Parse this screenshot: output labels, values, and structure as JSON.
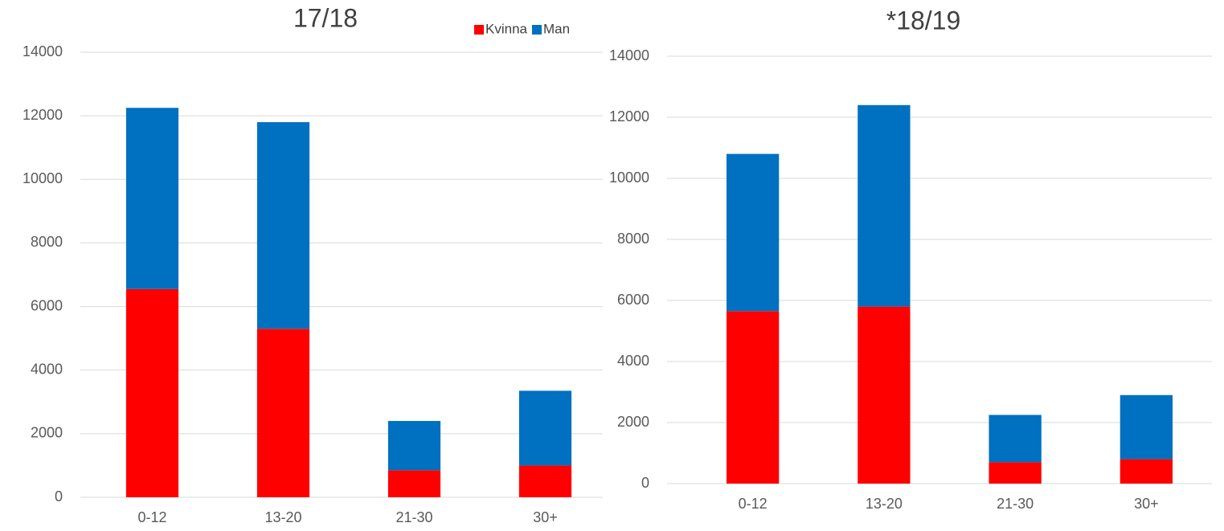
{
  "chart_data": [
    {
      "type": "bar",
      "stacked": true,
      "title": "17/18",
      "categories": [
        "0-12",
        "13-20",
        "21-30",
        "30+"
      ],
      "series": [
        {
          "name": "Kvinna",
          "color": "#ff0000",
          "values": [
            6550,
            5300,
            850,
            1000
          ]
        },
        {
          "name": "Man",
          "color": "#0070c0",
          "values": [
            5700,
            6500,
            1550,
            2350
          ]
        }
      ],
      "ylim": [
        0,
        14000
      ],
      "yticks": [
        0,
        2000,
        4000,
        6000,
        8000,
        10000,
        12000,
        14000
      ],
      "grid": true,
      "legend": "top right"
    },
    {
      "type": "bar",
      "stacked": true,
      "title": "*18/19",
      "categories": [
        "0-12",
        "13-20",
        "21-30",
        "30+"
      ],
      "series": [
        {
          "name": "Kvinna",
          "color": "#ff0000",
          "values": [
            5650,
            5800,
            700,
            800
          ]
        },
        {
          "name": "Man",
          "color": "#0070c0",
          "values": [
            5150,
            6600,
            1550,
            2100
          ]
        }
      ],
      "ylim": [
        0,
        14000
      ],
      "yticks": [
        0,
        2000,
        4000,
        6000,
        8000,
        10000,
        12000,
        14000
      ],
      "grid": true
    }
  ]
}
